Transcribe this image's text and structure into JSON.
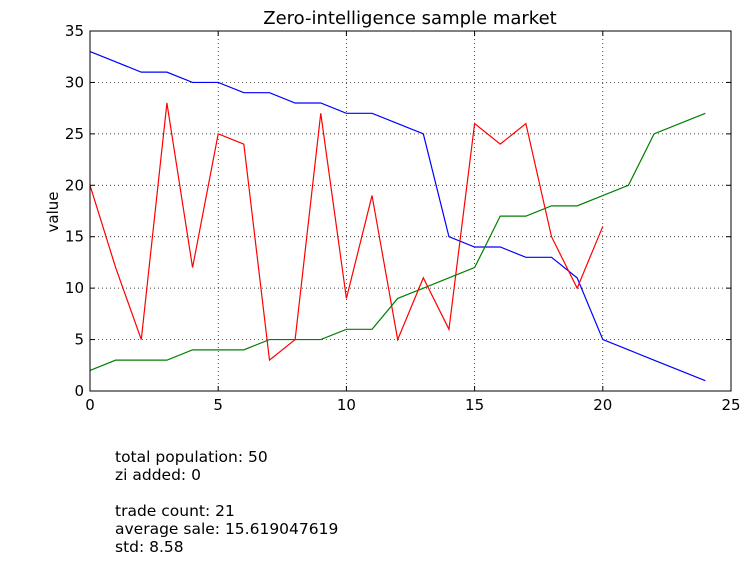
{
  "chart_data": {
    "type": "line",
    "title": "Zero-intelligence sample market",
    "xlabel": "",
    "ylabel": "value",
    "xlim": [
      0,
      25
    ],
    "ylim": [
      0,
      35
    ],
    "xticks": [
      0,
      5,
      10,
      15,
      20,
      25
    ],
    "yticks": [
      0,
      5,
      10,
      15,
      20,
      25,
      30,
      35
    ],
    "grid": true,
    "series": [
      {
        "color": "#0000ff",
        "x": [
          0,
          1,
          2,
          3,
          4,
          5,
          6,
          7,
          8,
          9,
          10,
          11,
          12,
          13,
          14,
          15,
          16,
          17,
          18,
          19,
          20,
          21,
          22,
          23,
          24
        ],
        "y": [
          33,
          32,
          31,
          31,
          30,
          30,
          29,
          29,
          28,
          28,
          27,
          27,
          26,
          25,
          15,
          14,
          14,
          13,
          13,
          11,
          5,
          4,
          3,
          2,
          1
        ]
      },
      {
        "color": "#008000",
        "x": [
          0,
          1,
          2,
          3,
          4,
          5,
          6,
          7,
          8,
          9,
          10,
          11,
          12,
          13,
          14,
          15,
          16,
          17,
          18,
          19,
          20,
          21,
          22,
          23,
          24
        ],
        "y": [
          2,
          3,
          3,
          3,
          4,
          4,
          4,
          5,
          5,
          5,
          6,
          6,
          9,
          10,
          11,
          12,
          17,
          17,
          18,
          18,
          19,
          20,
          25,
          26,
          27
        ]
      },
      {
        "color": "#ff0000",
        "x": [
          0,
          1,
          2,
          3,
          4,
          5,
          6,
          7,
          8,
          9,
          10,
          11,
          12,
          13,
          14,
          15,
          16,
          17,
          18,
          19,
          20
        ],
        "y": [
          20,
          12,
          5,
          28,
          12,
          25,
          24,
          3,
          5,
          27,
          9,
          19,
          5,
          11,
          6,
          26,
          24,
          26,
          15,
          10,
          16
        ]
      }
    ]
  },
  "stats": {
    "population": "total population: 50",
    "zi_added": "zi added: 0",
    "trade_count": "trade count: 21",
    "average_sale": "average sale: 15.619047619",
    "std": "std: 8.58"
  }
}
